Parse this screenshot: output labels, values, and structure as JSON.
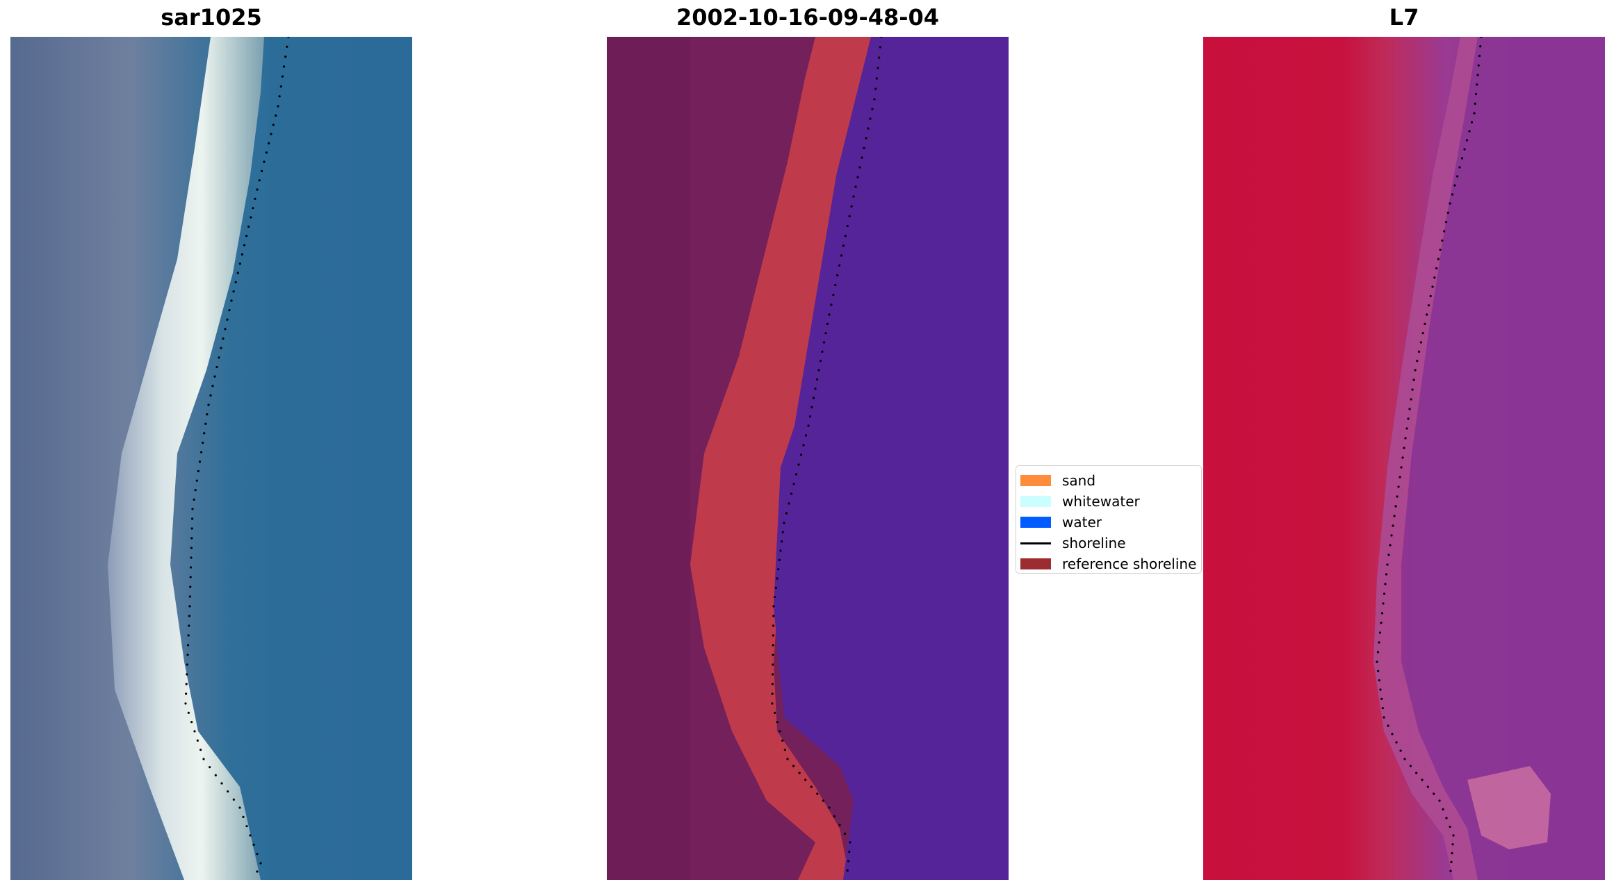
{
  "titles": {
    "left": "sar1025",
    "middle": "2002-10-16-09-48-04",
    "right": "L7"
  },
  "legend": {
    "items": [
      {
        "label": "sand",
        "type": "patch",
        "color": "#ff8c3b"
      },
      {
        "label": "whitewater",
        "type": "patch",
        "color": "#cafeff"
      },
      {
        "label": "water",
        "type": "patch",
        "color": "#005cff"
      },
      {
        "label": "shoreline",
        "type": "line",
        "color": "#000000"
      },
      {
        "label": "reference shoreline",
        "type": "patch",
        "color": "#9b2c30"
      }
    ]
  },
  "colors": {
    "rgb_land": "#4f6a93",
    "rgb_sand": "#e8f0ee",
    "rgb_water": "#2c6f9e",
    "class_land": "#74205a",
    "class_reference": "#bf3b4b",
    "class_water": "#552498",
    "ndwi_land": "#c6123f",
    "ndwi_water": "#8a3596",
    "shoreline": "#000000"
  }
}
